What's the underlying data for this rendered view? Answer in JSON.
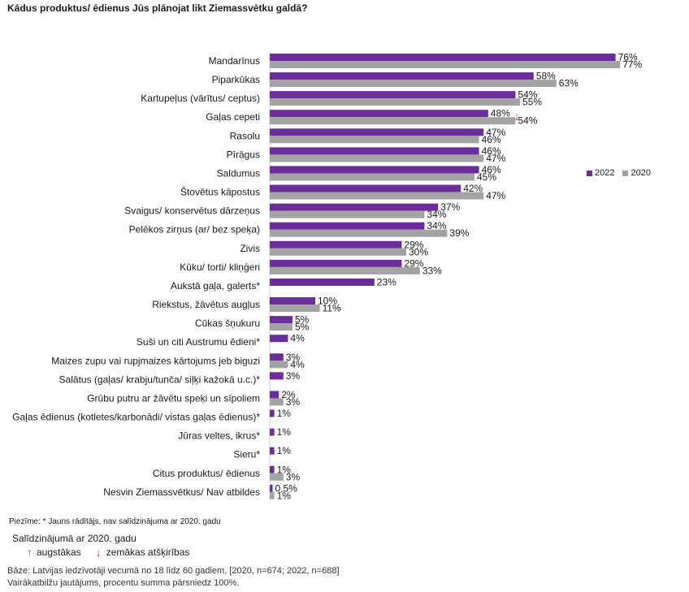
{
  "chart_data": {
    "type": "bar",
    "orientation": "horizontal",
    "title": "Kādus produktus/ ēdienus Jūs plānojat likt Ziemassvētku galdā?",
    "xlim": [
      0,
      100
    ],
    "grid": false,
    "legend_position": "right",
    "categories": [
      "Mandarīnus",
      "Piparkūkas",
      "Kartupeļus (vārītus/ ceptus)",
      "Gaļas cepeti",
      "Rasolu",
      "Pīrāgus",
      "Saldumus",
      "Štovētus kāpostus",
      "Svaigus/ konservētus dārzeņus",
      "Pelēkos zirņus (ar/ bez speķa)",
      "Zivis",
      "Kūku/ torti/ kliņģeri",
      "Aukstā gaļa, galerts*",
      "Riekstus, žāvētus augļus",
      "Cūkas šņukuru",
      "Suši un citi Austrumu ēdieni*",
      "Maizes zupu vai rupjmaizes kārtojums jeb biguzi",
      "Salātus (gaļas/ krabju/tunča/ siļķi kažokā u.c.)*",
      "Grūbu putru ar žāvētu speķi un sīpoliem",
      "Gaļas ēdienus (kotletes/karbonādi/ vistas gaļas ēdienus)*",
      "Jūras veltes, ikrus*",
      "Sieru*",
      "Citus produktus/ ēdienus",
      "Nesvin Ziemassvētkus/ Nav atbildes"
    ],
    "series": [
      {
        "name": "2022",
        "color": "#6b2d9c",
        "values": [
          76,
          58,
          54,
          48,
          47,
          46,
          46,
          42,
          37,
          34,
          29,
          29,
          23,
          10,
          5,
          4,
          3,
          3,
          2,
          1,
          1,
          1,
          1,
          0.5
        ],
        "labels": [
          "76%",
          "58%",
          "54%",
          "48%",
          "47%",
          "46%",
          "46%",
          "42%",
          "37%",
          "34%",
          "29%",
          "29%",
          "23%",
          "10%",
          "5%",
          "4%",
          "3%",
          "3%",
          "2%",
          "1%",
          "1%",
          "1%",
          "1%",
          "0,5%"
        ]
      },
      {
        "name": "2020",
        "color": "#a3a3a3",
        "values": [
          77,
          63,
          55,
          54,
          46,
          47,
          45,
          47,
          34,
          39,
          30,
          33,
          null,
          11,
          5,
          null,
          4,
          null,
          3,
          null,
          null,
          null,
          3,
          1
        ],
        "labels": [
          "77%",
          "63%",
          "55%",
          "54%",
          "46%",
          "47%",
          "45%",
          "47%",
          "34%",
          "39%",
          "30%",
          "33%",
          null,
          "11%",
          "5%",
          null,
          "4%",
          null,
          "3%",
          null,
          null,
          null,
          "3%",
          "1%"
        ]
      }
    ],
    "markers": [
      {
        "category_index": 3,
        "direction": "down",
        "color": "#c2262e"
      }
    ]
  },
  "legend": {
    "items": [
      {
        "label": "2022",
        "color": "#6b2d9c"
      },
      {
        "label": "2020",
        "color": "#a3a3a3"
      }
    ]
  },
  "footer": {
    "note": "Piezīme: * Jauns rādītājs, nav salīdzinājuma ar 2020. gadu",
    "comparison_title": "Salīdzinājumā ar 2020. gadu",
    "higher_label": "augstākas",
    "lower_label": "zemākas atšķirības",
    "higher_color": "#2bb34a",
    "lower_color": "#c2262e",
    "base_line1": "Bāze: Latvijas iedzīvotāji vecumā no 18 līdz 60 gadiem, [2020, n=674; 2022, n=688]",
    "base_line2": "Vairākatbilžu jautājums, procentu summa pārsniedz 100%."
  }
}
